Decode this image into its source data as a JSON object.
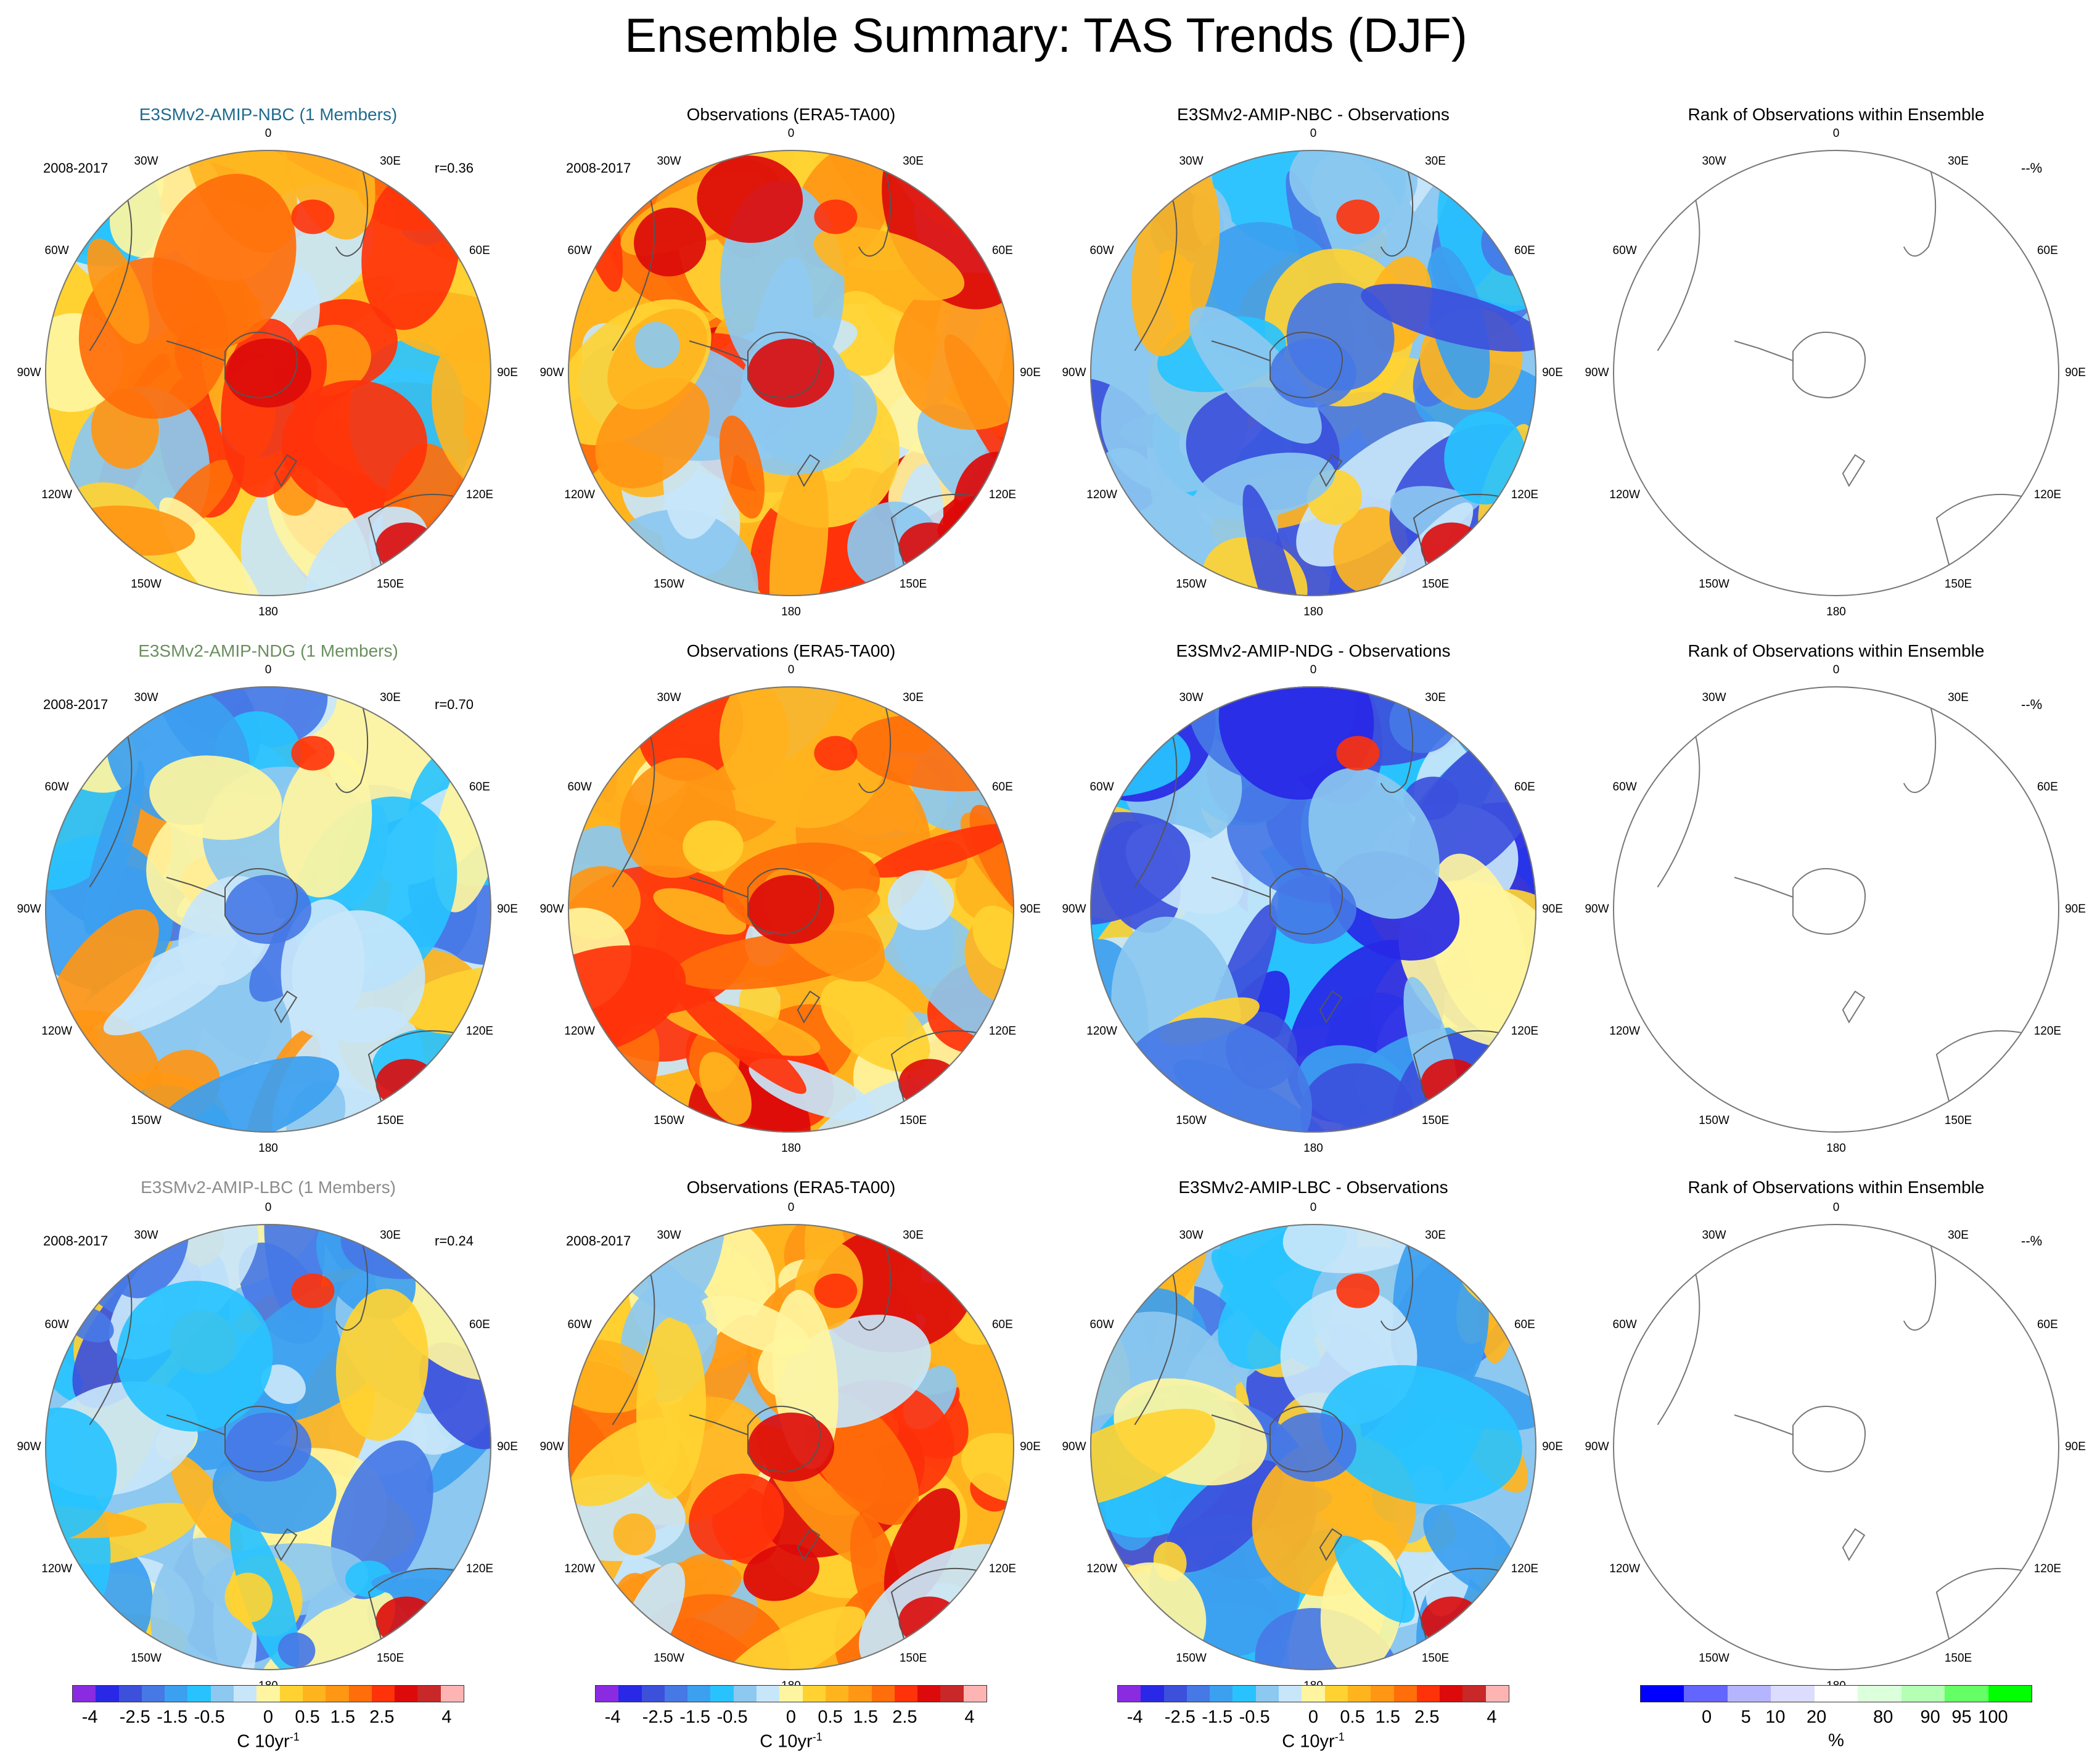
{
  "title": "Ensemble Summary: TAS Trends (DJF)",
  "rows": [
    {
      "model_title": "E3SMv2-AMIP-NBC (1 Members)",
      "model_color": "#1f6b8f",
      "obs_title": "Observations (ERA5-TA00)",
      "diff_title": "E3SMv2-AMIP-NBC - Observations",
      "rank_title": "Rank of Observations within Ensemble",
      "period": "2008-2017",
      "corr": "r=0.36",
      "rank_pct": "--%"
    },
    {
      "model_title": "E3SMv2-AMIP-NDG (1 Members)",
      "model_color": "#6b8f5f",
      "obs_title": "Observations (ERA5-TA00)",
      "diff_title": "E3SMv2-AMIP-NDG - Observations",
      "rank_title": "Rank of Observations within Ensemble",
      "period": "2008-2017",
      "corr": "r=0.70",
      "rank_pct": "--%"
    },
    {
      "model_title": "E3SMv2-AMIP-LBC (1 Members)",
      "model_color": "#8c8c8c",
      "obs_title": "Observations (ERA5-TA00)",
      "diff_title": "E3SMv2-AMIP-LBC - Observations",
      "rank_title": "Rank of Observations within Ensemble",
      "period": "2008-2017",
      "corr": "r=0.24",
      "rank_pct": "--%"
    }
  ],
  "lon_labels": [
    "0",
    "30E",
    "60E",
    "90E",
    "120E",
    "150E",
    "180",
    "150W",
    "120W",
    "90W",
    "60W",
    "30W"
  ],
  "chart_data": {
    "type": "heatmap",
    "projection": "south polar stereographic",
    "trend_colorbar": {
      "ticks": [
        "-4",
        "-2.5",
        "-1.5",
        "-0.5",
        "0",
        "0.5",
        "1.5",
        "2.5",
        "4"
      ],
      "units": "C 10yr",
      "units_sup": "-1",
      "colors": [
        "#8a2be2",
        "#2828e6",
        "#3c50dc",
        "#4678e6",
        "#3ca0f0",
        "#28c3ff",
        "#8cc8f0",
        "#c8e6fa",
        "#fff5a0",
        "#ffd232",
        "#ffb41e",
        "#ff9614",
        "#ff6e0a",
        "#ff320a",
        "#dc0a0a",
        "#c82828",
        "#ffb4b4"
      ]
    },
    "rank_colorbar": {
      "ticks": [
        "0",
        "5",
        "10",
        "20",
        "80",
        "90",
        "95",
        "100"
      ],
      "units": "%",
      "colors": [
        "#0000ff",
        "#6464ff",
        "#b4b4ff",
        "#dcdcff",
        "#ffffff",
        "#dcffdc",
        "#b4ffb4",
        "#64ff64",
        "#00ff00"
      ]
    }
  }
}
